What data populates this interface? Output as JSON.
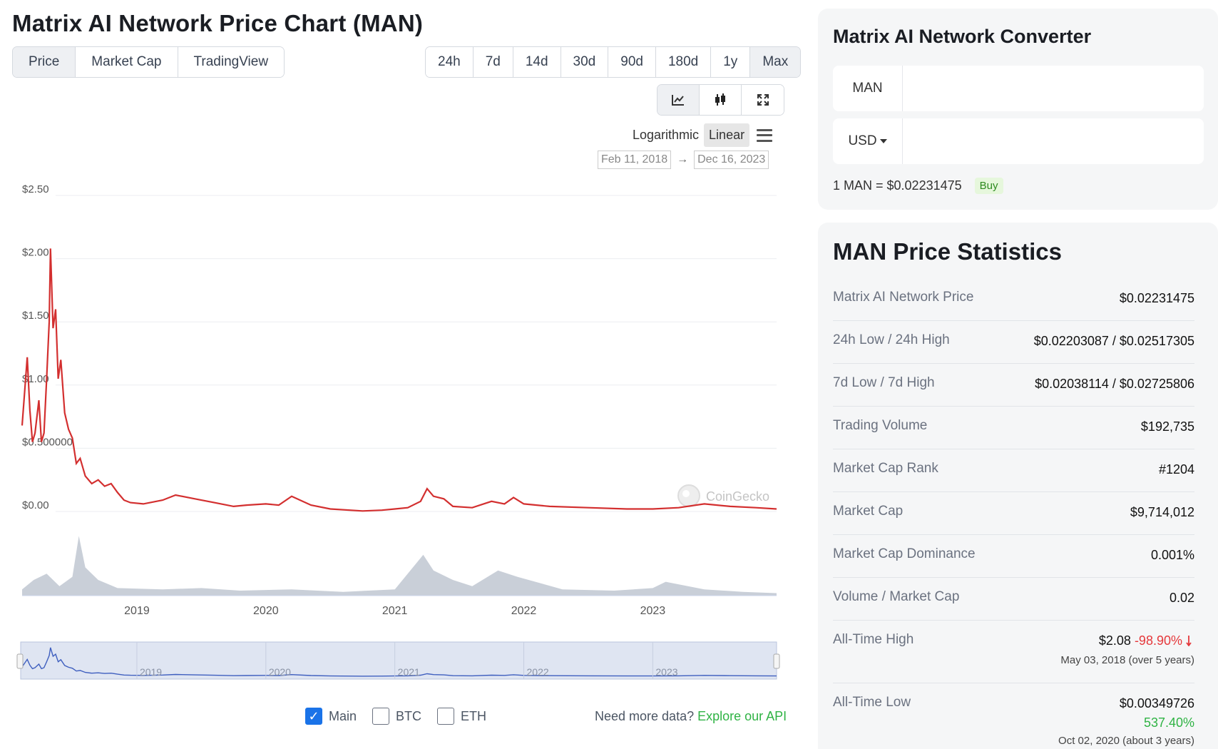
{
  "title": "Matrix AI Network Price Chart (MAN)",
  "view_tabs": [
    "Price",
    "Market Cap",
    "TradingView"
  ],
  "range_tabs": [
    "24h",
    "7d",
    "14d",
    "30d",
    "90d",
    "180d",
    "1y",
    "Max"
  ],
  "icon_tabs": [
    "line-chart-icon",
    "candlestick-icon",
    "expand-icon"
  ],
  "scale": {
    "log": "Logarithmic",
    "linear": "Linear"
  },
  "date_range": {
    "from": "Feb 11, 2018",
    "arrow": "→",
    "to": "Dec 16, 2023"
  },
  "watermark": "CoinGecko",
  "legend": {
    "main": "Main",
    "btc": "BTC",
    "eth": "ETH"
  },
  "api": {
    "prefix": "Need more data?",
    "link": "Explore our API"
  },
  "colors": {
    "price_line": "#d32f2f",
    "volume": "#c9cfd8",
    "accent": "#1a73e8",
    "green": "#2fb344",
    "red": "#e5383b"
  },
  "chart_data": {
    "type": "line",
    "title": "",
    "y_ticks": [
      "$2.50",
      "$2.00",
      "$1.50",
      "$1.00",
      "$0.500000",
      "$0.00"
    ],
    "x_ticks": [
      "2019",
      "2020",
      "2021",
      "2022",
      "2023"
    ],
    "ylim": [
      0,
      2.5
    ],
    "xlim": [
      2018.11,
      2023.96
    ],
    "series": [
      {
        "values": [
          [
            2018.11,
            0.68
          ],
          [
            2018.13,
            0.95
          ],
          [
            2018.15,
            1.22
          ],
          [
            2018.17,
            0.8
          ],
          [
            2018.19,
            0.55
          ],
          [
            2018.21,
            0.62
          ],
          [
            2018.24,
            0.88
          ],
          [
            2018.26,
            0.55
          ],
          [
            2018.28,
            0.62
          ],
          [
            2018.3,
            1.05
          ],
          [
            2018.32,
            1.5
          ],
          [
            2018.33,
            2.08
          ],
          [
            2018.35,
            1.45
          ],
          [
            2018.37,
            1.6
          ],
          [
            2018.39,
            1.05
          ],
          [
            2018.41,
            1.2
          ],
          [
            2018.44,
            0.78
          ],
          [
            2018.47,
            0.65
          ],
          [
            2018.5,
            0.58
          ],
          [
            2018.53,
            0.38
          ],
          [
            2018.56,
            0.42
          ],
          [
            2018.6,
            0.28
          ],
          [
            2018.65,
            0.22
          ],
          [
            2018.7,
            0.25
          ],
          [
            2018.75,
            0.2
          ],
          [
            2018.8,
            0.22
          ],
          [
            2018.85,
            0.15
          ],
          [
            2018.9,
            0.09
          ],
          [
            2018.95,
            0.07
          ],
          [
            2019.05,
            0.06
          ],
          [
            2019.2,
            0.09
          ],
          [
            2019.3,
            0.13
          ],
          [
            2019.45,
            0.1
          ],
          [
            2019.6,
            0.07
          ],
          [
            2019.75,
            0.04
          ],
          [
            2019.85,
            0.05
          ],
          [
            2020.0,
            0.06
          ],
          [
            2020.1,
            0.05
          ],
          [
            2020.2,
            0.12
          ],
          [
            2020.35,
            0.05
          ],
          [
            2020.5,
            0.02
          ],
          [
            2020.75,
            0.004
          ],
          [
            2020.9,
            0.01
          ],
          [
            2021.0,
            0.02
          ],
          [
            2021.1,
            0.03
          ],
          [
            2021.2,
            0.08
          ],
          [
            2021.25,
            0.18
          ],
          [
            2021.3,
            0.12
          ],
          [
            2021.38,
            0.1
          ],
          [
            2021.45,
            0.04
          ],
          [
            2021.6,
            0.03
          ],
          [
            2021.75,
            0.08
          ],
          [
            2021.85,
            0.06
          ],
          [
            2021.92,
            0.11
          ],
          [
            2022.0,
            0.06
          ],
          [
            2022.2,
            0.04
          ],
          [
            2022.5,
            0.03
          ],
          [
            2022.8,
            0.02
          ],
          [
            2023.0,
            0.02
          ],
          [
            2023.2,
            0.03
          ],
          [
            2023.4,
            0.06
          ],
          [
            2023.6,
            0.04
          ],
          [
            2023.8,
            0.03
          ],
          [
            2023.96,
            0.02
          ]
        ]
      }
    ],
    "volume": [
      [
        2018.11,
        0.1
      ],
      [
        2018.2,
        0.25
      ],
      [
        2018.3,
        0.35
      ],
      [
        2018.4,
        0.15
      ],
      [
        2018.5,
        0.3
      ],
      [
        2018.55,
        0.95
      ],
      [
        2018.6,
        0.45
      ],
      [
        2018.7,
        0.25
      ],
      [
        2018.85,
        0.12
      ],
      [
        2019.2,
        0.1
      ],
      [
        2019.5,
        0.12
      ],
      [
        2019.8,
        0.08
      ],
      [
        2020.2,
        0.1
      ],
      [
        2020.6,
        0.06
      ],
      [
        2021.0,
        0.1
      ],
      [
        2021.22,
        0.65
      ],
      [
        2021.3,
        0.4
      ],
      [
        2021.45,
        0.25
      ],
      [
        2021.6,
        0.15
      ],
      [
        2021.8,
        0.4
      ],
      [
        2021.95,
        0.3
      ],
      [
        2022.3,
        0.1
      ],
      [
        2022.7,
        0.08
      ],
      [
        2023.0,
        0.12
      ],
      [
        2023.1,
        0.22
      ],
      [
        2023.4,
        0.1
      ],
      [
        2023.7,
        0.06
      ],
      [
        2023.96,
        0.04
      ]
    ]
  },
  "converter": {
    "title": "Matrix AI Network Converter",
    "from": "MAN",
    "to": "USD",
    "rate": "1 MAN = $0.02231475",
    "buy": "Buy"
  },
  "stats": {
    "title": "MAN Price Statistics",
    "rows": [
      {
        "label": "Matrix AI Network Price",
        "value": "$0.02231475"
      },
      {
        "label": "24h Low / 24h High",
        "value": "$0.02203087 / $0.02517305"
      },
      {
        "label": "7d Low / 7d High",
        "value": "$0.02038114 / $0.02725806"
      },
      {
        "label": "Trading Volume",
        "value": "$192,735"
      },
      {
        "label": "Market Cap Rank",
        "value": "#1204"
      },
      {
        "label": "Market Cap",
        "value": "$9,714,012"
      },
      {
        "label": "Market Cap Dominance",
        "value": "0.001%"
      },
      {
        "label": "Volume / Market Cap",
        "value": "0.02"
      }
    ],
    "ath": {
      "label": "All-Time High",
      "value": "$2.08",
      "change": "-98.90%",
      "date": "May 03, 2018 (over 5 years)"
    },
    "atl": {
      "label": "All-Time Low",
      "value": "$0.00349726",
      "change": "537.40%",
      "date": "Oct 02, 2020 (about 3 years)"
    }
  }
}
